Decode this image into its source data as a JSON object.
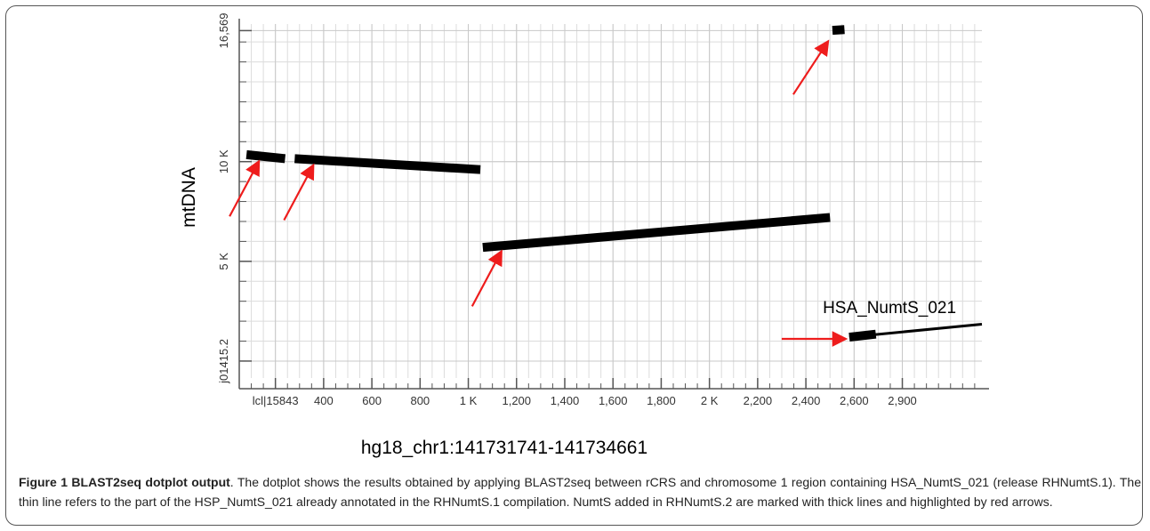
{
  "chart_data": {
    "type": "dotplot",
    "xlabel": "hg18_chr1:141731741-141734661",
    "ylabel": "mtDNA",
    "xlim": [
      -150,
      2930
    ],
    "ylim": [
      -850,
      16900
    ],
    "x_ticks": [
      {
        "value": 0,
        "label": "lcl|15843"
      },
      {
        "value": 200,
        "label": "400"
      },
      {
        "value": 400,
        "label": "600"
      },
      {
        "value": 600,
        "label": "800"
      },
      {
        "value": 800,
        "label": "1 K"
      },
      {
        "value": 1000,
        "label": "1,200"
      },
      {
        "value": 1200,
        "label": "1,400"
      },
      {
        "value": 1400,
        "label": "1,600"
      },
      {
        "value": 1600,
        "label": "1,800"
      },
      {
        "value": 1800,
        "label": "2 K"
      },
      {
        "value": 2000,
        "label": "2,200"
      },
      {
        "value": 2200,
        "label": "2,400"
      },
      {
        "value": 2400,
        "label": "2,600"
      },
      {
        "value": 2600,
        "label": "2,900"
      }
    ],
    "y_ticks": [
      {
        "value": 0,
        "label": "j01415.2"
      },
      {
        "value": 5000,
        "label": "5 K"
      },
      {
        "value": 10000,
        "label": "10 K"
      },
      {
        "value": 16569,
        "label": "16,569"
      }
    ],
    "segments": [
      {
        "x": [
          -120,
          40
        ],
        "y": [
          10350,
          10150
        ],
        "thickness": "thick",
        "arrow": true
      },
      {
        "x": [
          80,
          850
        ],
        "y": [
          10150,
          9600
        ],
        "thickness": "thick",
        "arrow": true
      },
      {
        "x": [
          860,
          2300
        ],
        "y": [
          5700,
          7200
        ],
        "thickness": "thick",
        "arrow": true
      },
      {
        "x": [
          2310,
          2360
        ],
        "y": [
          16580,
          16620
        ],
        "thickness": "thick",
        "arrow": true
      },
      {
        "x": [
          2380,
          2490
        ],
        "y": [
          1200,
          1350
        ],
        "thickness": "thick",
        "arrow": true
      },
      {
        "x": [
          2380,
          2930
        ],
        "y": [
          1200,
          1850
        ],
        "thickness": "thin",
        "arrow": false
      }
    ],
    "annotations": [
      {
        "text": "HSA_NumtS_021",
        "x": 2270,
        "y": 2400
      }
    ],
    "colors": {
      "segment": "#000000",
      "arrow": "#ee1c1c",
      "grid": "#dcdcdc",
      "axis": "#555555"
    },
    "grid": true
  },
  "caption": {
    "title": "Figure 1 BLAST2seq dotplot output",
    "text": ". The dotplot shows the results obtained by applying BLAST2seq between rCRS and chromosome 1 region containing HSA_NumtS_021 (release RHNumtS.1). The thin line refers to the part of the HSP_NumtS_021 already annotated in the RHNumtS.1 compilation. NumtS added in RHNumtS.2 are marked with thick lines and highlighted by red arrows."
  }
}
